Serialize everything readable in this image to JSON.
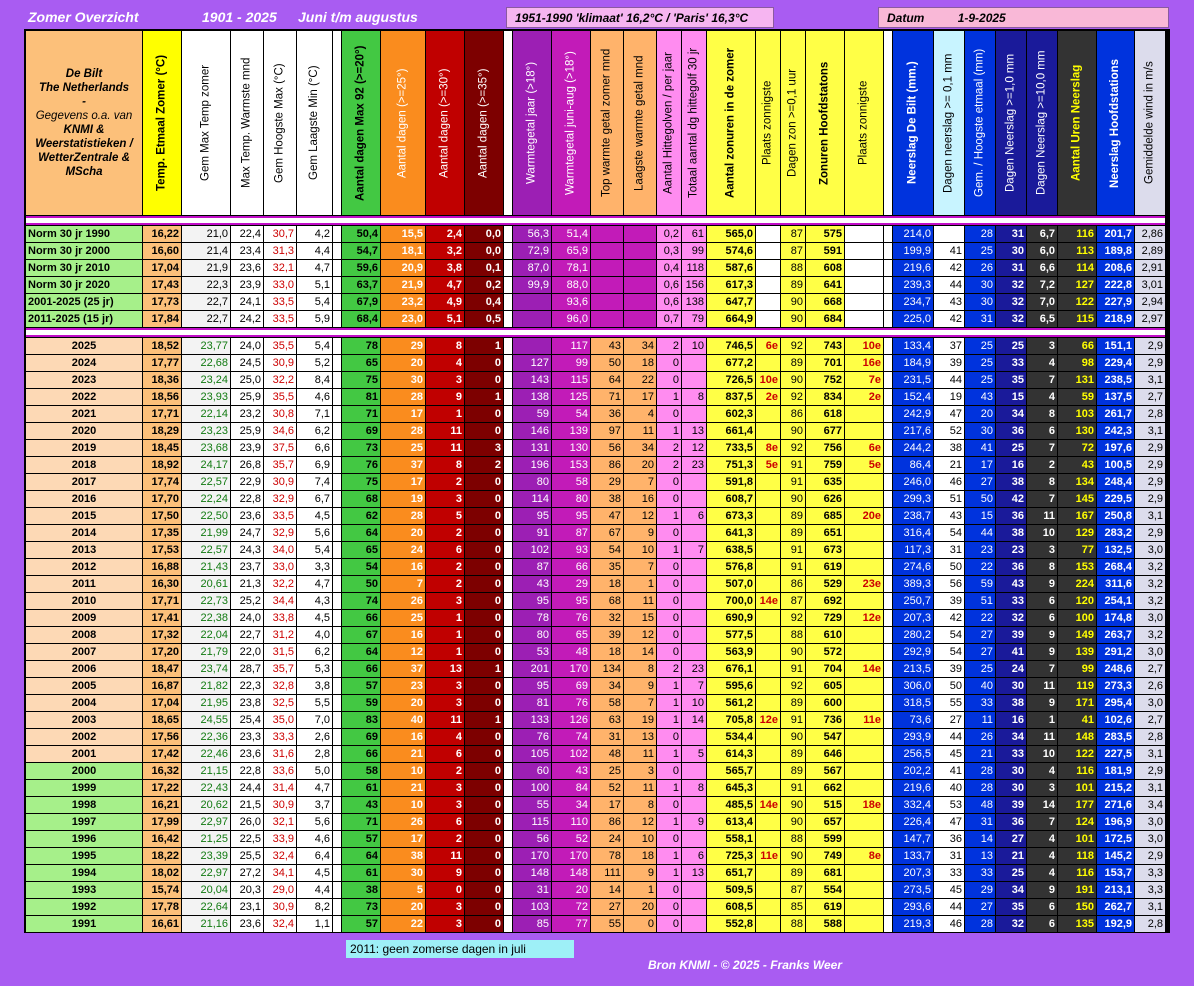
{
  "header": {
    "title": "Zomer Overzicht",
    "years": "1901 - 2025",
    "period": "Juni t/m augustus",
    "climate": "1951-1990 'klimaat' 16,2°C / 'Paris' 16,3°C",
    "datum_label": "Datum",
    "datum_value": "1-9-2025"
  },
  "info_lines": [
    "De Bilt",
    "The Netherlands",
    "-",
    "Gegevens o.a. van",
    "KNMI &",
    "Weerstatistieken /",
    "WetterZentrale &",
    "MScha"
  ],
  "columns": [
    "Temp. Etmaal Zomer (°C)",
    "Gem Max Temp zomer",
    "Max Temp. Warmste mnd",
    "Gem Hoogste Max (°C)",
    "Gem Laagste Min (°C)",
    "Aantal dagen Max 92 (>=20°)",
    "Aantal dagen (>=25°)",
    "Aantal dagen (>=30°)",
    "Aantal dagen (>=35°)",
    "Warmtegetal jaar (>18°)",
    "Warmtegetal juni-aug (>18°)",
    "Top warmte getal zomer mnd",
    "Laagste warmte getal mnd",
    "Aantal Hittegolven / per jaar",
    "Totaal aantal dg hittegolf 30 jr",
    "Aantal zonuren in de zomer",
    "Plaats zonnigste",
    "Dagen zon >=0,1 uur",
    "Zonuren Hoofdstatons",
    "Plaats zonnigste",
    "Neerslag De Bilt (mm.)",
    "Dagen neerslag >= 0,1 mm",
    "Gem. / Hoogste etmaal (mm)",
    "Dagen Neerslag >=1,0 mm",
    "Dagen Neerslag >=10,0 mm",
    "Aantal Uren Neerslag",
    "Neerslag Hoofdstations",
    "Gemiddelde wind in m/s"
  ],
  "norm_rows": [
    [
      "Norm 30 jr 1990",
      "16,22",
      "21,0",
      "22,4",
      "30,7",
      "4,2",
      "50,4",
      "15,5",
      "2,4",
      "0,0",
      "56,3",
      "51,4",
      "",
      "",
      "0,2",
      "61",
      "565,0",
      "",
      "87",
      "575",
      "",
      "214,0",
      "",
      "28",
      "31",
      "6,7",
      "116",
      "201,7",
      "2,86"
    ],
    [
      "Norm 30 jr 2000",
      "16,60",
      "21,4",
      "23,4",
      "31,3",
      "4,4",
      "54,7",
      "18,1",
      "3,2",
      "0,0",
      "72,9",
      "65,9",
      "",
      "",
      "0,3",
      "99",
      "574,6",
      "",
      "87",
      "591",
      "",
      "199,9",
      "41",
      "25",
      "30",
      "6,0",
      "113",
      "189,8",
      "2,89"
    ],
    [
      "Norm 30 jr 2010",
      "17,04",
      "21,9",
      "23,6",
      "32,1",
      "4,7",
      "59,6",
      "20,9",
      "3,8",
      "0,1",
      "87,0",
      "78,1",
      "",
      "",
      "0,4",
      "118",
      "587,6",
      "",
      "88",
      "608",
      "",
      "219,6",
      "42",
      "26",
      "31",
      "6,6",
      "114",
      "208,6",
      "2,91"
    ],
    [
      "Norm 30 jr 2020",
      "17,43",
      "22,3",
      "23,9",
      "33,0",
      "5,1",
      "63,7",
      "21,9",
      "4,7",
      "0,2",
      "99,9",
      "88,0",
      "",
      "",
      "0,6",
      "156",
      "617,3",
      "",
      "89",
      "641",
      "",
      "239,3",
      "44",
      "30",
      "32",
      "7,2",
      "127",
      "222,8",
      "3,01"
    ],
    [
      "2001-2025 (25 jr)",
      "17,73",
      "22,7",
      "24,1",
      "33,5",
      "5,4",
      "67,9",
      "23,2",
      "4,9",
      "0,4",
      "",
      "93,6",
      "",
      "",
      "0,6",
      "138",
      "647,7",
      "",
      "90",
      "668",
      "",
      "234,7",
      "43",
      "30",
      "32",
      "7,0",
      "122",
      "227,9",
      "2,94"
    ],
    [
      "2011-2025 (15 jr)",
      "17,84",
      "22,7",
      "24,2",
      "33,5",
      "5,9",
      "68,4",
      "23,0",
      "5,1",
      "0,5",
      "",
      "96,0",
      "",
      "",
      "0,7",
      "79",
      "664,9",
      "",
      "90",
      "684",
      "",
      "225,0",
      "42",
      "31",
      "32",
      "6,5",
      "115",
      "218,9",
      "2,97"
    ]
  ],
  "year_rows": [
    [
      "2025",
      "18,52",
      "23,77",
      "24,0",
      "35,5",
      "5,4",
      "78",
      "29",
      "8",
      "1",
      "",
      "117",
      "43",
      "34",
      "2",
      "10",
      "746,5",
      "6e",
      "92",
      "743",
      "10e",
      "133,4",
      "37",
      "25",
      "25",
      "3",
      "66",
      "151,1",
      "2,9"
    ],
    [
      "2024",
      "17,77",
      "22,68",
      "24,5",
      "30,9",
      "5,2",
      "65",
      "20",
      "4",
      "0",
      "127",
      "99",
      "50",
      "18",
      "0",
      "",
      "677,2",
      "",
      "89",
      "701",
      "16e",
      "184,9",
      "39",
      "25",
      "33",
      "4",
      "98",
      "229,4",
      "2,9"
    ],
    [
      "2023",
      "18,36",
      "23,24",
      "25,0",
      "32,2",
      "8,4",
      "75",
      "30",
      "3",
      "0",
      "143",
      "115",
      "64",
      "22",
      "0",
      "",
      "726,5",
      "10e",
      "90",
      "752",
      "7e",
      "231,5",
      "44",
      "25",
      "35",
      "7",
      "131",
      "238,5",
      "3,1"
    ],
    [
      "2022",
      "18,56",
      "23,93",
      "25,9",
      "35,5",
      "4,6",
      "81",
      "28",
      "9",
      "1",
      "138",
      "125",
      "71",
      "17",
      "1",
      "8",
      "837,5",
      "2e",
      "92",
      "834",
      "2e",
      "152,4",
      "19",
      "43",
      "15",
      "4",
      "59",
      "137,5",
      "2,7"
    ],
    [
      "2021",
      "17,71",
      "22,14",
      "23,2",
      "30,8",
      "7,1",
      "71",
      "17",
      "1",
      "0",
      "59",
      "54",
      "36",
      "4",
      "0",
      "",
      "602,3",
      "",
      "86",
      "618",
      "",
      "242,9",
      "47",
      "20",
      "34",
      "8",
      "103",
      "261,7",
      "2,8"
    ],
    [
      "2020",
      "18,29",
      "23,23",
      "25,9",
      "34,6",
      "6,2",
      "69",
      "28",
      "11",
      "0",
      "146",
      "139",
      "97",
      "11",
      "1",
      "13",
      "661,4",
      "",
      "90",
      "677",
      "",
      "217,6",
      "52",
      "30",
      "36",
      "6",
      "130",
      "242,3",
      "3,1"
    ],
    [
      "2019",
      "18,45",
      "23,68",
      "23,9",
      "37,5",
      "6,6",
      "73",
      "25",
      "11",
      "3",
      "131",
      "130",
      "56",
      "34",
      "2",
      "12",
      "733,5",
      "8e",
      "92",
      "756",
      "6e",
      "244,2",
      "38",
      "41",
      "25",
      "7",
      "72",
      "197,6",
      "2,9"
    ],
    [
      "2018",
      "18,92",
      "24,17",
      "26,8",
      "35,7",
      "6,9",
      "76",
      "37",
      "8",
      "2",
      "196",
      "153",
      "86",
      "20",
      "2",
      "23",
      "751,3",
      "5e",
      "91",
      "759",
      "5e",
      "86,4",
      "21",
      "17",
      "16",
      "2",
      "43",
      "100,5",
      "2,9"
    ],
    [
      "2017",
      "17,74",
      "22,57",
      "22,9",
      "30,9",
      "7,4",
      "75",
      "17",
      "2",
      "0",
      "80",
      "58",
      "29",
      "7",
      "0",
      "",
      "591,8",
      "",
      "91",
      "635",
      "",
      "246,0",
      "46",
      "27",
      "38",
      "8",
      "134",
      "248,4",
      "2,9"
    ],
    [
      "2016",
      "17,70",
      "22,24",
      "22,8",
      "32,9",
      "6,7",
      "68",
      "19",
      "3",
      "0",
      "114",
      "80",
      "38",
      "16",
      "0",
      "",
      "608,7",
      "",
      "90",
      "626",
      "",
      "299,3",
      "51",
      "50",
      "42",
      "7",
      "145",
      "229,5",
      "2,9"
    ],
    [
      "2015",
      "17,50",
      "22,50",
      "23,6",
      "33,5",
      "4,5",
      "62",
      "28",
      "5",
      "0",
      "95",
      "95",
      "47",
      "12",
      "1",
      "6",
      "673,3",
      "",
      "89",
      "685",
      "20e",
      "238,7",
      "43",
      "15",
      "36",
      "11",
      "167",
      "250,8",
      "3,1"
    ],
    [
      "2014",
      "17,35",
      "21,99",
      "24,7",
      "32,9",
      "5,6",
      "64",
      "20",
      "2",
      "0",
      "91",
      "87",
      "67",
      "9",
      "0",
      "",
      "641,3",
      "",
      "89",
      "651",
      "",
      "316,4",
      "54",
      "44",
      "38",
      "10",
      "129",
      "283,2",
      "2,9"
    ],
    [
      "2013",
      "17,53",
      "22,57",
      "24,3",
      "34,0",
      "5,4",
      "65",
      "24",
      "6",
      "0",
      "102",
      "93",
      "54",
      "10",
      "1",
      "7",
      "638,5",
      "",
      "91",
      "673",
      "",
      "117,3",
      "31",
      "23",
      "23",
      "3",
      "77",
      "132,5",
      "3,0"
    ],
    [
      "2012",
      "16,88",
      "21,43",
      "23,7",
      "33,0",
      "3,3",
      "54",
      "16",
      "2",
      "0",
      "87",
      "66",
      "35",
      "7",
      "0",
      "",
      "576,8",
      "",
      "91",
      "619",
      "",
      "274,6",
      "50",
      "22",
      "36",
      "8",
      "153",
      "268,4",
      "3,2"
    ],
    [
      "2011",
      "16,30",
      "20,61",
      "21,3",
      "32,2",
      "4,7",
      "50",
      "7",
      "2",
      "0",
      "43",
      "29",
      "18",
      "1",
      "0",
      "",
      "507,0",
      "",
      "86",
      "529",
      "23e",
      "389,3",
      "56",
      "59",
      "43",
      "9",
      "224",
      "311,6",
      "3,2"
    ],
    [
      "2010",
      "17,71",
      "22,73",
      "25,2",
      "34,4",
      "4,3",
      "74",
      "26",
      "3",
      "0",
      "95",
      "95",
      "68",
      "11",
      "0",
      "",
      "700,0",
      "14e",
      "87",
      "692",
      "",
      "250,7",
      "39",
      "51",
      "33",
      "6",
      "120",
      "254,1",
      "3,2"
    ],
    [
      "2009",
      "17,41",
      "22,38",
      "24,0",
      "33,8",
      "4,5",
      "66",
      "25",
      "1",
      "0",
      "78",
      "76",
      "32",
      "15",
      "0",
      "",
      "690,9",
      "",
      "92",
      "729",
      "12e",
      "207,3",
      "42",
      "22",
      "32",
      "6",
      "100",
      "174,8",
      "3,0"
    ],
    [
      "2008",
      "17,32",
      "22,04",
      "22,7",
      "31,2",
      "4,0",
      "67",
      "16",
      "1",
      "0",
      "80",
      "65",
      "39",
      "12",
      "0",
      "",
      "577,5",
      "",
      "88",
      "610",
      "",
      "280,2",
      "54",
      "27",
      "39",
      "9",
      "149",
      "263,7",
      "3,2"
    ],
    [
      "2007",
      "17,20",
      "21,79",
      "22,0",
      "31,5",
      "6,2",
      "64",
      "12",
      "1",
      "0",
      "53",
      "48",
      "18",
      "14",
      "0",
      "",
      "563,9",
      "",
      "90",
      "572",
      "",
      "292,9",
      "54",
      "27",
      "41",
      "9",
      "139",
      "291,2",
      "3,0"
    ],
    [
      "2006",
      "18,47",
      "23,74",
      "28,7",
      "35,7",
      "5,3",
      "66",
      "37",
      "13",
      "1",
      "201",
      "170",
      "134",
      "8",
      "2",
      "23",
      "676,1",
      "",
      "91",
      "704",
      "14e",
      "213,5",
      "39",
      "25",
      "24",
      "7",
      "99",
      "248,6",
      "2,7"
    ],
    [
      "2005",
      "16,87",
      "21,82",
      "22,3",
      "32,8",
      "3,8",
      "57",
      "23",
      "3",
      "0",
      "95",
      "69",
      "34",
      "9",
      "1",
      "7",
      "595,6",
      "",
      "92",
      "605",
      "",
      "306,0",
      "50",
      "40",
      "30",
      "11",
      "119",
      "273,3",
      "2,6"
    ],
    [
      "2004",
      "17,04",
      "21,95",
      "23,8",
      "32,5",
      "5,5",
      "59",
      "20",
      "3",
      "0",
      "81",
      "76",
      "58",
      "7",
      "1",
      "10",
      "561,2",
      "",
      "89",
      "600",
      "",
      "318,5",
      "55",
      "33",
      "38",
      "9",
      "171",
      "295,4",
      "3,0"
    ],
    [
      "2003",
      "18,65",
      "24,55",
      "25,4",
      "35,0",
      "7,0",
      "83",
      "40",
      "11",
      "1",
      "133",
      "126",
      "63",
      "19",
      "1",
      "14",
      "705,8",
      "12e",
      "91",
      "736",
      "11e",
      "73,6",
      "27",
      "11",
      "16",
      "1",
      "41",
      "102,6",
      "2,7"
    ],
    [
      "2002",
      "17,56",
      "22,36",
      "23,3",
      "33,3",
      "2,6",
      "69",
      "16",
      "4",
      "0",
      "76",
      "74",
      "31",
      "13",
      "0",
      "",
      "534,4",
      "",
      "90",
      "547",
      "",
      "293,9",
      "44",
      "26",
      "34",
      "11",
      "148",
      "283,5",
      "2,8"
    ],
    [
      "2001",
      "17,42",
      "22,46",
      "23,6",
      "31,6",
      "2,8",
      "66",
      "21",
      "6",
      "0",
      "105",
      "102",
      "48",
      "11",
      "1",
      "5",
      "614,3",
      "",
      "89",
      "646",
      "",
      "256,5",
      "45",
      "21",
      "33",
      "10",
      "122",
      "227,5",
      "3,1"
    ],
    [
      "2000",
      "16,32",
      "21,15",
      "22,8",
      "33,6",
      "5,0",
      "58",
      "10",
      "2",
      "0",
      "60",
      "43",
      "25",
      "3",
      "0",
      "",
      "565,7",
      "",
      "89",
      "567",
      "",
      "202,2",
      "41",
      "28",
      "30",
      "4",
      "116",
      "181,9",
      "2,9"
    ],
    [
      "1999",
      "17,22",
      "22,43",
      "24,4",
      "31,4",
      "4,7",
      "61",
      "21",
      "3",
      "0",
      "100",
      "84",
      "52",
      "11",
      "1",
      "8",
      "645,3",
      "",
      "91",
      "662",
      "",
      "219,6",
      "40",
      "28",
      "30",
      "3",
      "101",
      "215,2",
      "3,1"
    ],
    [
      "1998",
      "16,21",
      "20,62",
      "21,5",
      "30,9",
      "3,7",
      "43",
      "10",
      "3",
      "0",
      "55",
      "34",
      "17",
      "8",
      "0",
      "",
      "485,5",
      "14e",
      "90",
      "515",
      "18e",
      "332,4",
      "53",
      "48",
      "39",
      "14",
      "177",
      "271,6",
      "3,4"
    ],
    [
      "1997",
      "17,99",
      "22,97",
      "26,0",
      "32,1",
      "5,6",
      "71",
      "26",
      "6",
      "0",
      "115",
      "110",
      "86",
      "12",
      "1",
      "9",
      "613,4",
      "",
      "90",
      "657",
      "",
      "226,4",
      "47",
      "31",
      "36",
      "7",
      "124",
      "196,9",
      "3,0"
    ],
    [
      "1996",
      "16,42",
      "21,25",
      "22,5",
      "33,9",
      "4,6",
      "57",
      "17",
      "2",
      "0",
      "56",
      "52",
      "24",
      "10",
      "0",
      "",
      "558,1",
      "",
      "88",
      "599",
      "",
      "147,7",
      "36",
      "14",
      "27",
      "4",
      "101",
      "172,5",
      "3,0"
    ],
    [
      "1995",
      "18,22",
      "23,39",
      "25,5",
      "32,4",
      "6,4",
      "64",
      "38",
      "11",
      "0",
      "170",
      "170",
      "78",
      "18",
      "1",
      "6",
      "725,3",
      "11e",
      "90",
      "749",
      "8e",
      "133,7",
      "31",
      "13",
      "21",
      "4",
      "118",
      "145,2",
      "2,9"
    ],
    [
      "1994",
      "18,02",
      "22,97",
      "27,2",
      "34,1",
      "4,5",
      "61",
      "30",
      "9",
      "0",
      "148",
      "148",
      "111",
      "9",
      "1",
      "13",
      "651,7",
      "",
      "89",
      "681",
      "",
      "207,3",
      "33",
      "33",
      "25",
      "4",
      "116",
      "153,7",
      "3,3"
    ],
    [
      "1993",
      "15,74",
      "20,04",
      "20,3",
      "29,0",
      "4,4",
      "38",
      "5",
      "0",
      "0",
      "31",
      "20",
      "14",
      "1",
      "0",
      "",
      "509,5",
      "",
      "87",
      "554",
      "",
      "273,5",
      "45",
      "29",
      "34",
      "9",
      "191",
      "213,1",
      "3,3"
    ],
    [
      "1992",
      "17,78",
      "22,64",
      "23,1",
      "30,9",
      "8,2",
      "73",
      "20",
      "3",
      "0",
      "103",
      "72",
      "27",
      "20",
      "0",
      "",
      "608,5",
      "",
      "85",
      "619",
      "",
      "293,6",
      "44",
      "27",
      "35",
      "6",
      "150",
      "262,7",
      "3,1"
    ],
    [
      "1991",
      "16,61",
      "21,16",
      "23,6",
      "32,4",
      "1,1",
      "57",
      "22",
      "3",
      "0",
      "85",
      "77",
      "55",
      "0",
      "0",
      "",
      "552,8",
      "",
      "88",
      "588",
      "",
      "219,3",
      "46",
      "28",
      "32",
      "6",
      "135",
      "192,9",
      "2,8"
    ]
  ],
  "note": "2011: geen zomerse dagen in juli",
  "footer": "Bron KNMI  - © 2025 - Franks Weer",
  "colors": {
    "page_bg": "#a95cf2",
    "header_yellow": "#ffff00",
    "year_label_peach": "#fdd9b5",
    "year_label_green": "#a6f08a",
    "temp_orange": "#fcc07a",
    "green_block": "#43c843",
    "orange_block": "#fa8c1e",
    "red_block": "#c00000",
    "darkred_block": "#7d0000",
    "purple_block": "#9c1fb4",
    "magenta_block": "#c21bb8",
    "lightorange": "#ffb36b",
    "pink": "#ff8cf0",
    "yellow": "#ffff46",
    "blue_block": "#0033dd",
    "navy_block": "#1a1a9a",
    "grey_block": "#dcdcec"
  }
}
